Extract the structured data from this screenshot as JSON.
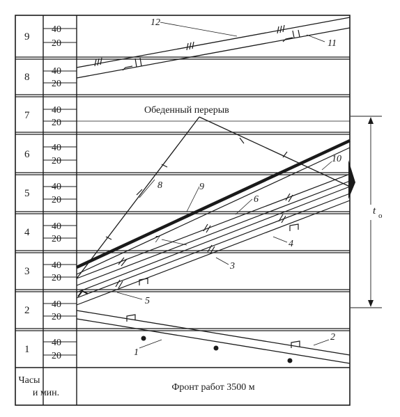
{
  "axis": {
    "hour_caption_line1": "Часы",
    "hour_caption_line2": "и мин.",
    "front_caption": "Фронт работ 3500 м",
    "hours": [
      "9",
      "8",
      "7",
      "6",
      "5",
      "4",
      "3",
      "2",
      "1"
    ],
    "minute_marks": [
      "40",
      "20"
    ]
  },
  "annotations": {
    "lunch_break": "Обеденный перерыв",
    "cycle_time": "t",
    "cycle_time_sub": "o"
  },
  "line_labels": [
    "1",
    "2",
    "3",
    "4",
    "5",
    "6",
    "7",
    "8",
    "9",
    "10",
    "11",
    "12"
  ],
  "colors": {
    "ink": "#1a1a1a",
    "paper": "#ffffff"
  }
}
